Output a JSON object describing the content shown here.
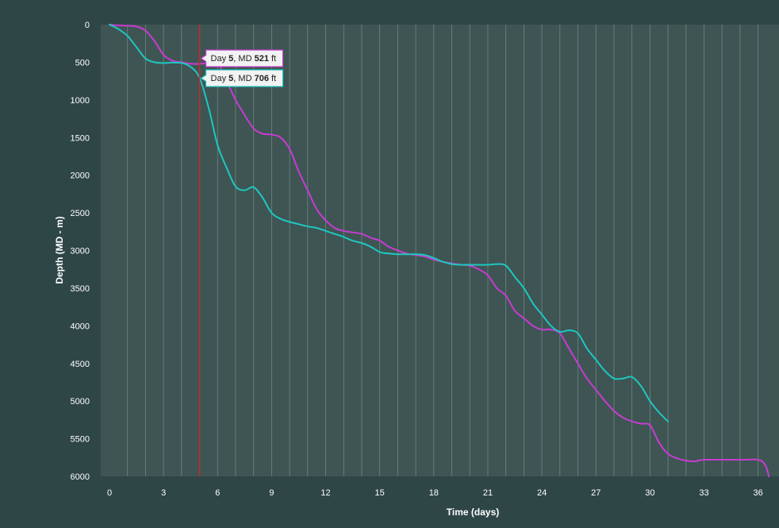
{
  "chart_data": {
    "type": "line",
    "xlabel": "Time (days)",
    "ylabel": "Depth (MD - m)",
    "xlim": [
      0,
      36.5
    ],
    "ylim": [
      6000,
      0
    ],
    "x_ticks": [
      "0",
      "3",
      "6",
      "9",
      "12",
      "15",
      "18",
      "21",
      "24",
      "27",
      "30",
      "33",
      "36"
    ],
    "y_ticks": [
      "0",
      "500",
      "1000",
      "1500",
      "2000",
      "2500",
      "3000",
      "3500",
      "4000",
      "4500",
      "5000",
      "5500",
      "6000"
    ],
    "grid": true,
    "colors": {
      "background": "#2f4647",
      "plot_background": "#3e5554",
      "grid": "#6a8a83",
      "cursor": "#c42a2a",
      "magenta": "#c83cd0",
      "cyan": "#1fc7c0"
    },
    "series": [
      {
        "color": "#c83cd0",
        "points": [
          [
            0,
            0
          ],
          [
            0.5,
            10
          ],
          [
            1,
            15
          ],
          [
            1.5,
            25
          ],
          [
            2,
            80
          ],
          [
            2.5,
            220
          ],
          [
            3,
            400
          ],
          [
            3.5,
            480
          ],
          [
            4,
            500
          ],
          [
            4.5,
            520
          ],
          [
            5,
            521
          ],
          [
            5.5,
            510
          ],
          [
            6,
            500
          ],
          [
            6.5,
            750
          ],
          [
            7,
            1000
          ],
          [
            7.5,
            1200
          ],
          [
            8,
            1380
          ],
          [
            8.5,
            1450
          ],
          [
            9,
            1460
          ],
          [
            9.5,
            1500
          ],
          [
            10,
            1650
          ],
          [
            10.5,
            1950
          ],
          [
            11,
            2200
          ],
          [
            11.5,
            2450
          ],
          [
            12,
            2600
          ],
          [
            12.5,
            2700
          ],
          [
            13,
            2740
          ],
          [
            13.5,
            2760
          ],
          [
            14,
            2780
          ],
          [
            14.5,
            2830
          ],
          [
            15,
            2870
          ],
          [
            15.5,
            2950
          ],
          [
            16,
            3000
          ],
          [
            16.5,
            3040
          ],
          [
            17,
            3060
          ],
          [
            17.5,
            3080
          ],
          [
            18,
            3120
          ],
          [
            18.5,
            3150
          ],
          [
            19,
            3170
          ],
          [
            19.5,
            3190
          ],
          [
            20,
            3200
          ],
          [
            20.5,
            3250
          ],
          [
            21,
            3330
          ],
          [
            21.5,
            3500
          ],
          [
            22,
            3600
          ],
          [
            22.5,
            3800
          ],
          [
            23,
            3900
          ],
          [
            23.5,
            4000
          ],
          [
            24,
            4050
          ],
          [
            24.5,
            4050
          ],
          [
            25,
            4100
          ],
          [
            25.5,
            4300
          ],
          [
            26,
            4500
          ],
          [
            26.5,
            4700
          ],
          [
            27,
            4850
          ],
          [
            27.5,
            5000
          ],
          [
            28,
            5130
          ],
          [
            28.5,
            5220
          ],
          [
            29,
            5270
          ],
          [
            29.5,
            5300
          ],
          [
            30,
            5320
          ],
          [
            30.5,
            5550
          ],
          [
            31,
            5700
          ],
          [
            31.5,
            5760
          ],
          [
            32,
            5790
          ],
          [
            32.5,
            5800
          ],
          [
            33,
            5780
          ],
          [
            35,
            5780
          ],
          [
            36,
            5780
          ],
          [
            36.4,
            5850
          ],
          [
            36.6,
            6000
          ]
        ]
      },
      {
        "color": "#1fc7c0",
        "points": [
          [
            0,
            0
          ],
          [
            0.5,
            60
          ],
          [
            1,
            150
          ],
          [
            1.5,
            300
          ],
          [
            2,
            450
          ],
          [
            2.5,
            500
          ],
          [
            3,
            510
          ],
          [
            3.5,
            505
          ],
          [
            4,
            510
          ],
          [
            4.5,
            560
          ],
          [
            5,
            706
          ],
          [
            5.5,
            1100
          ],
          [
            6,
            1600
          ],
          [
            6.5,
            1900
          ],
          [
            7,
            2150
          ],
          [
            7.5,
            2200
          ],
          [
            8,
            2160
          ],
          [
            8.5,
            2300
          ],
          [
            9,
            2500
          ],
          [
            9.5,
            2580
          ],
          [
            10,
            2620
          ],
          [
            10.5,
            2650
          ],
          [
            11,
            2680
          ],
          [
            11.5,
            2700
          ],
          [
            12,
            2740
          ],
          [
            12.5,
            2780
          ],
          [
            13,
            2820
          ],
          [
            13.5,
            2870
          ],
          [
            14,
            2900
          ],
          [
            14.5,
            2950
          ],
          [
            15,
            3020
          ],
          [
            15.5,
            3040
          ],
          [
            16,
            3050
          ],
          [
            17,
            3050
          ],
          [
            17.5,
            3060
          ],
          [
            18,
            3100
          ],
          [
            18.5,
            3150
          ],
          [
            19,
            3180
          ],
          [
            19.5,
            3190
          ],
          [
            20,
            3190
          ],
          [
            21,
            3190
          ],
          [
            21.5,
            3180
          ],
          [
            22,
            3200
          ],
          [
            22.5,
            3350
          ],
          [
            23,
            3500
          ],
          [
            23.5,
            3700
          ],
          [
            24,
            3850
          ],
          [
            24.5,
            4000
          ],
          [
            25,
            4080
          ],
          [
            25.5,
            4060
          ],
          [
            26,
            4100
          ],
          [
            26.5,
            4300
          ],
          [
            27,
            4450
          ],
          [
            27.5,
            4600
          ],
          [
            28,
            4700
          ],
          [
            28.5,
            4700
          ],
          [
            29,
            4680
          ],
          [
            29.5,
            4800
          ],
          [
            30,
            5000
          ],
          [
            30.5,
            5150
          ],
          [
            31,
            5270
          ]
        ]
      }
    ],
    "cursor": {
      "x": 5
    },
    "tooltips": [
      {
        "prefix": "Day ",
        "day": "5",
        "middle": ", MD ",
        "value": "521",
        "unit": " ft",
        "color": "#c83cd0"
      },
      {
        "prefix": "Day ",
        "day": "5",
        "middle": ", MD ",
        "value": "706",
        "unit": " ft",
        "color": "#1fc7c0"
      }
    ]
  }
}
